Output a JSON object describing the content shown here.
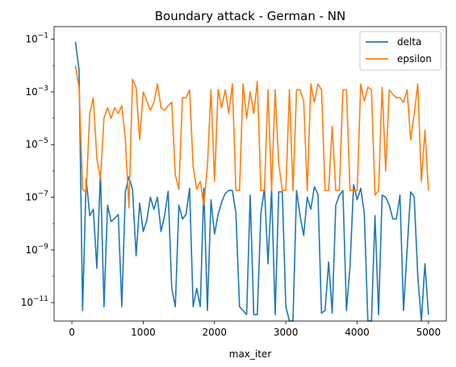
{
  "chart_data": {
    "type": "line",
    "title": "Boundary attack - German - NN",
    "xlabel": "max_iter",
    "ylabel": "",
    "yscale": "log",
    "xlim": [
      -250,
      5250
    ],
    "ylim": [
      2e-12,
      0.3
    ],
    "xticks": [
      0,
      1000,
      2000,
      3000,
      4000,
      5000
    ],
    "yticks": [
      {
        "value": 1e-11,
        "base": "10",
        "exp": "−11"
      },
      {
        "value": 1e-09,
        "base": "10",
        "exp": "−9"
      },
      {
        "value": 1e-07,
        "base": "10",
        "exp": "−7"
      },
      {
        "value": 1e-05,
        "base": "10",
        "exp": "−5"
      },
      {
        "value": 0.001,
        "base": "10",
        "exp": "−3"
      },
      {
        "value": 0.1,
        "base": "10",
        "exp": "−1"
      }
    ],
    "legend_position": "top-right",
    "x": [
      50,
      100,
      150,
      200,
      250,
      300,
      350,
      400,
      450,
      500,
      550,
      600,
      650,
      700,
      750,
      800,
      850,
      900,
      950,
      1000,
      1050,
      1100,
      1150,
      1200,
      1250,
      1300,
      1350,
      1400,
      1450,
      1500,
      1550,
      1600,
      1650,
      1700,
      1750,
      1800,
      1850,
      1900,
      1950,
      2000,
      2050,
      2100,
      2150,
      2200,
      2250,
      2300,
      2350,
      2400,
      2450,
      2500,
      2550,
      2600,
      2650,
      2700,
      2750,
      2800,
      2850,
      2900,
      2950,
      3000,
      3050,
      3100,
      3150,
      3200,
      3250,
      3300,
      3350,
      3400,
      3450,
      3500,
      3550,
      3600,
      3650,
      3700,
      3750,
      3800,
      3850,
      3900,
      3950,
      4000,
      4050,
      4100,
      4150,
      4200,
      4250,
      4300,
      4350,
      4400,
      4450,
      4500,
      4550,
      4600,
      4650,
      4700,
      4750,
      4800,
      4850,
      4900,
      4950,
      5000
    ],
    "series": [
      {
        "name": "delta",
        "color": "#1f77b4",
        "values": [
          0.08,
          0.007,
          5e-12,
          5e-07,
          2e-08,
          3.5e-08,
          2e-10,
          9e-07,
          7e-12,
          5e-08,
          1.2e-08,
          1.6e-08,
          2.2e-08,
          7e-12,
          1.6e-07,
          6e-07,
          2e-07,
          6e-10,
          6e-08,
          5e-09,
          1.3e-08,
          1e-07,
          3.5e-08,
          1e-07,
          5e-09,
          2e-08,
          1.7e-07,
          3.5e-11,
          7e-12,
          5e-08,
          1.5e-08,
          2.2e-08,
          2.2e-07,
          7e-12,
          3.5e-11,
          7e-12,
          2.2e-07,
          5e-12,
          8e-08,
          4e-09,
          2.2e-08,
          6.5e-08,
          1.4e-07,
          1.8e-07,
          1.8e-07,
          2.5e-08,
          7e-12,
          5e-12,
          3.5e-12,
          1.2e-07,
          3.5e-12,
          3.5e-12,
          2.5e-08,
          2.2e-07,
          3e-10,
          2e-07,
          3.5e-12,
          1.6e-07,
          1.6e-07,
          7e-12,
          2e-12,
          2e-12,
          1.8e-07,
          2e-08,
          3.5e-09,
          1e-07,
          3.5e-08,
          2.5e-07,
          1.3e-07,
          4e-12,
          5e-12,
          3.5e-10,
          4e-12,
          5e-08,
          1.2e-07,
          1.8e-07,
          5e-12,
          2.5e-10,
          3e-07,
          8e-08,
          2.2e-07,
          2.5e-08,
          2e-12,
          2e-12,
          2e-08,
          3.5e-12,
          1.2e-07,
          1e-07,
          5e-08,
          1.5e-08,
          1.5e-08,
          1.2e-07,
          5e-12,
          1e-09,
          1.6e-07,
          1e-07,
          1e-10,
          2e-12,
          3e-10,
          3.5e-12
        ]
      },
      {
        "name": "epsilon",
        "color": "#ff7f0e",
        "values": [
          0.01,
          0.0015,
          2e-07,
          1.5e-07,
          0.00015,
          0.0006,
          3e-06,
          5e-07,
          0.0001,
          0.00025,
          0.0001,
          0.00025,
          0.00015,
          0.0003,
          1.5e-05,
          4e-08,
          0.003,
          0.0015,
          1.5e-05,
          0.001,
          0.00045,
          0.0002,
          0.0004,
          0.002,
          0.00025,
          0.0002,
          0.0003,
          0.0004,
          7e-07,
          2e-07,
          0.0006,
          0.0006,
          0.0012,
          1.5e-06,
          2e-07,
          4e-07,
          5e-08,
          1.5e-06,
          0.0012,
          4e-07,
          0.0012,
          0.00025,
          0.0012,
          0.00015,
          0.002,
          1.8e-07,
          1.8e-07,
          0.002,
          0.0001,
          0.001,
          0.00015,
          0.0025,
          1.8e-07,
          1.8e-07,
          0.0012,
          1.8e-07,
          0.0012,
          1.8e-06,
          1.8e-07,
          1.8e-07,
          0.0012,
          1.8e-07,
          0.0012,
          0.0012,
          0.00045,
          1.8e-07,
          0.002,
          0.0004,
          0.002,
          0.0012,
          1.8e-07,
          1.8e-07,
          5e-05,
          1.8e-07,
          1.8e-07,
          0.0012,
          0.0012,
          1.8e-07,
          1.8e-07,
          1.8e-07,
          0.002,
          0.00045,
          0.0015,
          0.0012,
          1.2e-07,
          1.8e-07,
          0.0015,
          1e-06,
          0.0012,
          0.0008,
          0.0006,
          0.0006,
          0.0004,
          0.0012,
          1.5e-05,
          0.00015,
          0.002,
          4e-07,
          3.5e-05,
          1.8e-07
        ]
      }
    ]
  }
}
